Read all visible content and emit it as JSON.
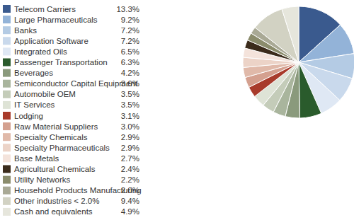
{
  "chart_data": {
    "type": "pie",
    "categories": [
      "Telecom Carriers",
      "Large Pharmaceuticals",
      "Banks",
      "Application Software",
      "Integrated Oils",
      "Passenger Transportation",
      "Beverages",
      "Semiconductor Capital Equipment",
      "Automobile OEM",
      "IT Services",
      "Lodging",
      "Raw Material Suppliers",
      "Specialty Chemicals",
      "Specialty Pharmaceuticals",
      "Base Metals",
      "Agricultural Chemicals",
      "Utility Networks",
      "Household Products Manufacturing",
      "Other industries < 2.0%",
      "Cash and equivalents"
    ],
    "values": [
      13.3,
      9.2,
      7.2,
      7.2,
      6.5,
      6.3,
      4.2,
      3.6,
      3.5,
      3.5,
      3.1,
      3.0,
      2.9,
      2.9,
      2.7,
      2.4,
      2.2,
      2.0,
      9.4,
      4.9
    ],
    "value_labels": [
      "13.3%",
      "9.2%",
      "7.2%",
      "7.2%",
      "6.5%",
      "6.3%",
      "4.2%",
      "3.6%",
      "3.5%",
      "3.5%",
      "3.1%",
      "3.0%",
      "2.9%",
      "2.9%",
      "2.7%",
      "2.4%",
      "2.2%",
      "2.0%",
      "9.4%",
      "4.9%"
    ],
    "colors": [
      "#3a5a8e",
      "#93b3d8",
      "#b4cbe4",
      "#c9d9ec",
      "#dfe8f4",
      "#2a5b2c",
      "#8a9a7c",
      "#a9b59d",
      "#c4ccb9",
      "#dee3d6",
      "#a83b2b",
      "#d4a08f",
      "#e0b9a9",
      "#ecd3c7",
      "#f4e3db",
      "#3b2b1b",
      "#8b8c6c",
      "#a9a995",
      "#d2d2c3",
      "#e6e6dc"
    ],
    "legend": "left"
  }
}
